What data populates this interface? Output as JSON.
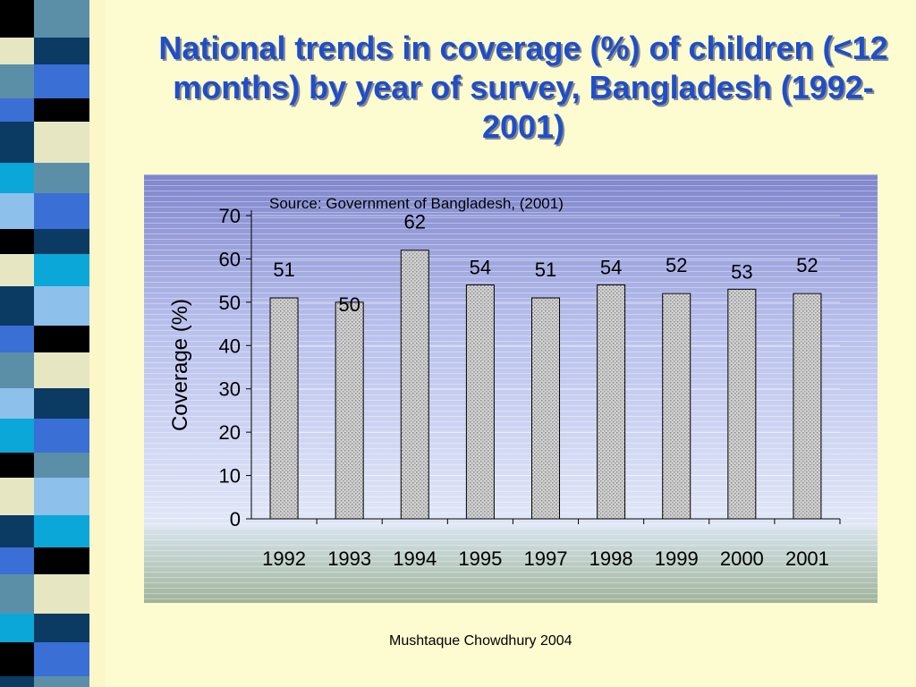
{
  "slide": {
    "title": "National trends in coverage (%) of children (<12 months) by year of survey, Bangladesh (1992-2001)",
    "footer": "Mushtaque Chowdhury 2004"
  },
  "colors": {
    "title": "#1f4ec9",
    "background": "#fdfbd0",
    "bar_fill": "#c9c9c9",
    "strip_colors": [
      "#5b8fa8",
      "#0b3a63",
      "#3a6fd6",
      "#e6e6c2",
      "#000000",
      "#0aa7d8",
      "#8ec0ec"
    ]
  },
  "chart_data": {
    "type": "bar",
    "annotation": "Source: Government of Bangladesh, (2001)",
    "ylabel": "Coverage (%)",
    "xlabel": "",
    "categories": [
      "1992",
      "1993",
      "1994",
      "1995",
      "1997",
      "1998",
      "1999",
      "2000",
      "2001"
    ],
    "values": [
      51,
      50,
      62,
      54,
      51,
      54,
      52,
      53,
      52
    ],
    "data_labels": [
      "51",
      "50",
      "62",
      "54",
      "51",
      "54",
      "52",
      "53",
      "52"
    ],
    "ylim": [
      0,
      70
    ],
    "yticks": [
      0,
      10,
      20,
      30,
      40,
      50,
      60,
      70
    ],
    "ytick_labels": [
      "0",
      "10",
      "20",
      "30",
      "40",
      "50",
      "60",
      "70"
    ],
    "grid": true,
    "legend": "none"
  }
}
